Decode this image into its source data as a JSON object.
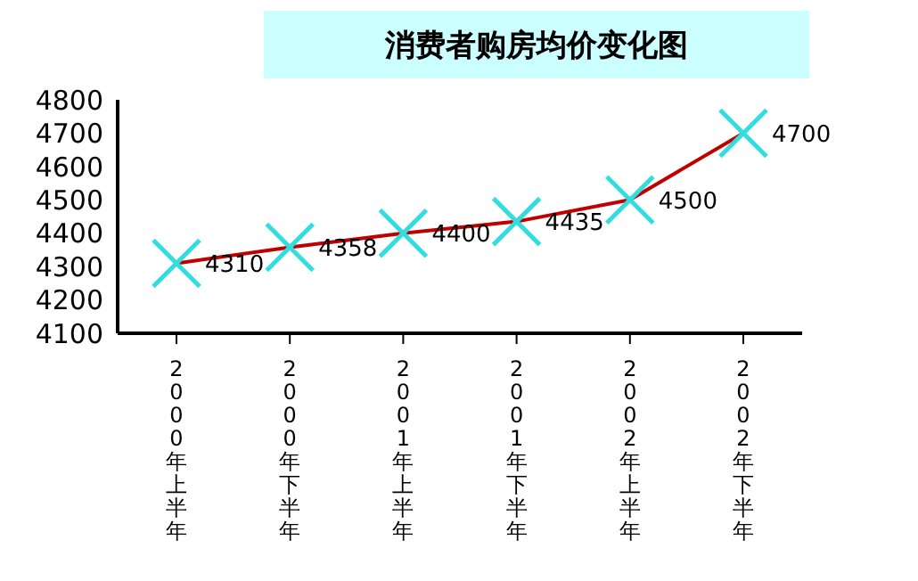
{
  "chart_data": {
    "type": "line",
    "title": "消费者购房均价变化图",
    "categories": [
      "2000年上半年",
      "2000年下半年",
      "2001年上半年",
      "2001年下半年",
      "2002年上半年",
      "2002年下半年"
    ],
    "series": [
      {
        "color": "#c00000",
        "values": [
          4310,
          4358,
          4400,
          4435,
          4500,
          4700
        ]
      }
    ],
    "ylim": [
      4100,
      4800
    ],
    "yticks": [
      4100,
      4200,
      4300,
      4400,
      4500,
      4600,
      4700,
      4800
    ],
    "marker": "cross",
    "data_labels": true
  }
}
